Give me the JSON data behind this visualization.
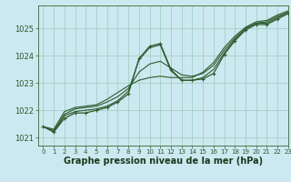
{
  "background_color": "#cce8f0",
  "grid_color": "#99ccbb",
  "line_color": "#2d5a2d",
  "xlabel": "Graphe pression niveau de la mer (hPa)",
  "xlabel_fontsize": 7,
  "xlim": [
    -0.5,
    23
  ],
  "ylim": [
    1020.7,
    1025.85
  ],
  "yticks": [
    1021,
    1022,
    1023,
    1024,
    1025
  ],
  "xticks": [
    0,
    1,
    2,
    3,
    4,
    5,
    6,
    7,
    8,
    9,
    10,
    11,
    12,
    13,
    14,
    15,
    16,
    17,
    18,
    19,
    20,
    21,
    22,
    23
  ],
  "series": [
    {
      "y": [
        1021.4,
        1021.2,
        1021.7,
        1021.9,
        1021.9,
        1022.0,
        1022.1,
        1022.3,
        1022.6,
        1023.9,
        1024.35,
        1024.45,
        1023.5,
        1023.1,
        1023.1,
        1023.15,
        1023.35,
        1024.05,
        1024.55,
        1024.95,
        1025.15,
        1025.15,
        1025.35,
        1025.55
      ],
      "marker": true,
      "lw": 0.9
    },
    {
      "y": [
        1021.4,
        1021.2,
        1021.8,
        1021.95,
        1022.0,
        1022.05,
        1022.15,
        1022.35,
        1022.7,
        1023.85,
        1024.3,
        1024.4,
        1023.45,
        1023.1,
        1023.1,
        1023.2,
        1023.5,
        1024.1,
        1024.6,
        1025.0,
        1025.2,
        1025.2,
        1025.4,
        1025.6
      ],
      "marker": false,
      "lw": 0.8
    },
    {
      "y": [
        1021.4,
        1021.25,
        1021.85,
        1022.05,
        1022.1,
        1022.15,
        1022.3,
        1022.5,
        1022.8,
        1023.4,
        1023.7,
        1023.8,
        1023.55,
        1023.3,
        1023.25,
        1023.35,
        1023.65,
        1024.2,
        1024.65,
        1025.0,
        1025.2,
        1025.25,
        1025.45,
        1025.6
      ],
      "marker": false,
      "lw": 0.8
    },
    {
      "y": [
        1021.4,
        1021.3,
        1021.95,
        1022.1,
        1022.15,
        1022.2,
        1022.4,
        1022.65,
        1022.9,
        1023.1,
        1023.2,
        1023.25,
        1023.2,
        1023.2,
        1023.2,
        1023.4,
        1023.75,
        1024.3,
        1024.72,
        1025.05,
        1025.25,
        1025.3,
        1025.5,
        1025.65
      ],
      "marker": false,
      "lw": 0.8
    }
  ]
}
